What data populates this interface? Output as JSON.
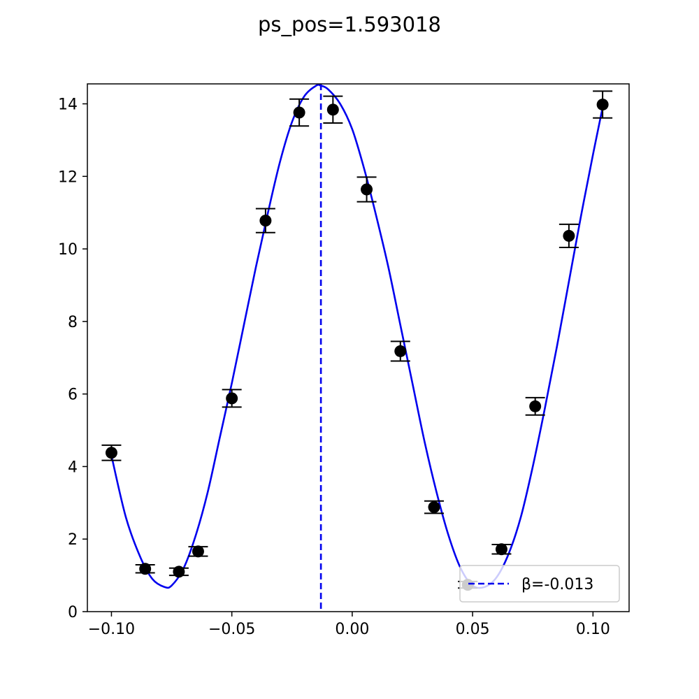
{
  "chart_data": {
    "type": "scatter",
    "title": "ps_pos=1.593018",
    "xlabel": "",
    "ylabel": "",
    "xlim": [
      -0.11,
      0.115
    ],
    "ylim": [
      0,
      14.55
    ],
    "xticks": [
      -0.1,
      -0.05,
      0.0,
      0.05,
      0.1
    ],
    "xtick_labels": [
      "−0.10",
      "−0.05",
      "0.00",
      "0.05",
      "0.10"
    ],
    "yticks": [
      0,
      2,
      4,
      6,
      8,
      10,
      12,
      14
    ],
    "ytick_labels": [
      "0",
      "2",
      "4",
      "6",
      "8",
      "10",
      "12",
      "14"
    ],
    "grid": false,
    "series": [
      {
        "kind": "errorbar",
        "color": "#000000",
        "x": [
          -0.1,
          -0.086,
          -0.072,
          -0.064,
          -0.05,
          -0.036,
          -0.022,
          -0.008,
          0.006,
          0.02,
          0.034,
          0.048,
          0.062,
          0.076,
          0.09,
          0.104
        ],
        "y": [
          4.38,
          1.18,
          1.1,
          1.66,
          5.88,
          10.78,
          13.76,
          13.84,
          11.64,
          7.18,
          2.88,
          0.74,
          1.72,
          5.66,
          10.36,
          13.98
        ],
        "yerr": [
          0.21,
          0.11,
          0.1,
          0.13,
          0.24,
          0.33,
          0.37,
          0.37,
          0.34,
          0.27,
          0.17,
          0.09,
          0.13,
          0.24,
          0.32,
          0.37
        ]
      },
      {
        "kind": "fit-curve",
        "color": "#0000ee",
        "x": [
          -0.1,
          -0.094,
          -0.088,
          -0.083,
          -0.078,
          -0.075,
          -0.07,
          -0.065,
          -0.06,
          -0.055,
          -0.05,
          -0.045,
          -0.04,
          -0.035,
          -0.03,
          -0.025,
          -0.02,
          -0.015,
          -0.013,
          -0.01,
          -0.005,
          0.0,
          0.005,
          0.01,
          0.015,
          0.02,
          0.025,
          0.03,
          0.035,
          0.04,
          0.045,
          0.05,
          0.055,
          0.06,
          0.065,
          0.07,
          0.075,
          0.08,
          0.085,
          0.09,
          0.095,
          0.1,
          0.104
        ],
        "y": [
          4.3,
          2.6,
          1.5,
          0.9,
          0.68,
          0.72,
          1.2,
          2.1,
          3.3,
          4.8,
          6.3,
          7.9,
          9.5,
          11.0,
          12.4,
          13.5,
          14.2,
          14.5,
          14.5,
          14.4,
          14.0,
          13.3,
          12.2,
          10.9,
          9.5,
          7.9,
          6.3,
          4.7,
          3.3,
          2.1,
          1.2,
          0.72,
          0.68,
          0.95,
          1.6,
          2.6,
          4.0,
          5.6,
          7.3,
          9.1,
          10.9,
          12.6,
          13.9
        ]
      },
      {
        "kind": "vline",
        "name": "β=-0.013",
        "color": "#0000ee",
        "x": -0.013,
        "dashed": true
      }
    ],
    "legend": {
      "placement": "lower-right",
      "entries": [
        "β=-0.013"
      ]
    }
  }
}
